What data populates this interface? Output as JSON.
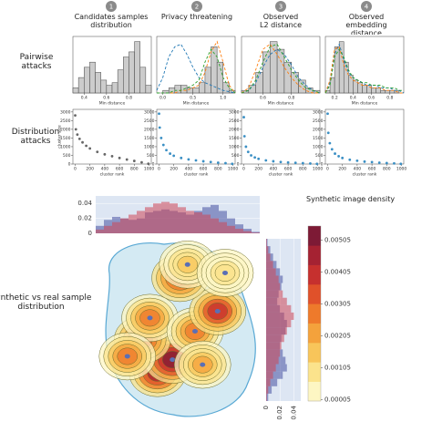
{
  "headers": [
    {
      "number": "1",
      "title": "Candidates samples distribution"
    },
    {
      "number": "2",
      "title": "Privacy threatening"
    },
    {
      "number": "3",
      "title": "Observed L2 distance"
    },
    {
      "number": "4",
      "title": "Observed embedding distance"
    }
  ],
  "row_labels": [
    "Pairwise attacks",
    "Distribution attacks",
    "Synthetic vs real sample distribution"
  ],
  "chart_data": [
    {
      "type": "histogram",
      "xlabel": "Min distance",
      "color": "#cccccc",
      "bins": [
        0.3,
        0.35,
        0.4,
        0.45,
        0.5,
        0.55,
        0.6,
        0.65,
        0.7,
        0.75,
        0.8,
        0.85,
        0.9,
        0.95,
        1.0
      ],
      "counts": [
        2,
        6,
        10,
        12,
        8,
        5,
        3,
        4,
        9,
        14,
        16,
        20,
        10,
        3
      ],
      "xlim": [
        0.3,
        1.0
      ],
      "ylim": [
        0,
        22
      ],
      "xticks": [
        0.4,
        0.6,
        0.8
      ],
      "series": []
    },
    {
      "type": "histogram",
      "xlabel": "Min distance",
      "color": "#cccccc",
      "bins": [
        -0.1,
        0,
        0.1,
        0.2,
        0.3,
        0.4,
        0.5,
        0.6,
        0.7,
        0.8,
        0.9,
        1.0,
        1.1,
        1.2
      ],
      "counts": [
        0,
        1,
        2,
        3,
        3,
        2,
        2,
        4,
        10,
        18,
        12,
        4,
        1
      ],
      "xlim": [
        -0.1,
        1.2
      ],
      "ylim": [
        0,
        22
      ],
      "xticks": [
        {
          "value": 0,
          "label": "0.0"
        },
        {
          "value": 0.5,
          "label": "0.5"
        },
        {
          "value": 1,
          "label": "1.0"
        }
      ],
      "x": [
        -0.1,
        0,
        0.1,
        0.2,
        0.3,
        0.4,
        0.5,
        0.6,
        0.7,
        0.8,
        0.9,
        1.0,
        1.1,
        1.2
      ],
      "series": [
        {
          "color": "#1f77b4",
          "values": [
            1,
            6,
            14,
            18,
            19,
            15,
            10,
            6,
            4,
            3,
            2,
            1,
            0.5,
            0
          ]
        },
        {
          "color": "#ff7f0e",
          "values": [
            0,
            0,
            0,
            0,
            1,
            1,
            2,
            3,
            8,
            16,
            20,
            12,
            3,
            0
          ]
        },
        {
          "color": "#2ca02c",
          "values": [
            0,
            0,
            0,
            1,
            1,
            2,
            3,
            5,
            12,
            17,
            14,
            6,
            2,
            0
          ]
        }
      ]
    },
    {
      "type": "histogram",
      "xlabel": "Min distance",
      "color": "#cccccc",
      "bins": [
        0.45,
        0.5,
        0.55,
        0.6,
        0.65,
        0.7,
        0.75,
        0.8,
        0.85,
        0.9,
        0.95,
        1.0
      ],
      "counts": [
        1,
        3,
        8,
        16,
        20,
        17,
        12,
        8,
        5,
        2,
        1
      ],
      "xlim": [
        0.45,
        1.0
      ],
      "ylim": [
        0,
        22
      ],
      "xticks": [
        0.6,
        0.8
      ],
      "x": [
        0.45,
        0.5,
        0.55,
        0.6,
        0.65,
        0.7,
        0.75,
        0.8,
        0.85,
        0.9,
        0.95,
        1.0
      ],
      "series": [
        {
          "color": "#1f77b4",
          "values": [
            0,
            1,
            4,
            10,
            15,
            17,
            15,
            11,
            6,
            3,
            1,
            0
          ]
        },
        {
          "color": "#ff7f0e",
          "values": [
            0,
            2,
            9,
            17,
            19,
            15,
            10,
            6,
            3,
            1,
            0,
            0
          ]
        },
        {
          "color": "#2ca02c",
          "values": [
            0,
            1,
            5,
            12,
            18,
            19,
            14,
            9,
            5,
            2,
            1,
            0
          ]
        }
      ]
    },
    {
      "type": "histogram",
      "xlabel": "Min distance",
      "color": "#cccccc",
      "bins": [
        0.1,
        0.15,
        0.2,
        0.25,
        0.3,
        0.35,
        0.4,
        0.45,
        0.5,
        0.55,
        0.6,
        0.65,
        0.7,
        0.75,
        0.8,
        0.85,
        0.9,
        0.95
      ],
      "counts": [
        1,
        6,
        18,
        20,
        12,
        7,
        5,
        4,
        3,
        3,
        2,
        2,
        1,
        1,
        1,
        1,
        0
      ],
      "xlim": [
        0.1,
        0.95
      ],
      "ylim": [
        0,
        22
      ],
      "xticks": [
        0.2,
        0.4,
        0.6,
        0.8
      ],
      "x": [
        0.1,
        0.15,
        0.2,
        0.25,
        0.3,
        0.35,
        0.4,
        0.45,
        0.5,
        0.55,
        0.6,
        0.65,
        0.7,
        0.75,
        0.8,
        0.85,
        0.9,
        0.95
      ],
      "series": [
        {
          "color": "#1f77b4",
          "values": [
            0,
            4,
            15,
            19,
            13,
            8,
            6,
            5,
            4,
            3,
            3,
            3,
            2,
            2,
            2,
            1,
            1,
            0
          ]
        },
        {
          "color": "#ff7f0e",
          "values": [
            0,
            5,
            17,
            18,
            11,
            7,
            5,
            4,
            3,
            3,
            2,
            2,
            2,
            1,
            1,
            1,
            0,
            0
          ]
        },
        {
          "color": "#2ca02c",
          "values": [
            0,
            3,
            14,
            17,
            14,
            9,
            6,
            5,
            4,
            4,
            3,
            3,
            3,
            2,
            2,
            2,
            1,
            1
          ]
        }
      ]
    },
    {
      "type": "scatter",
      "xlabel": "cluster rank",
      "ylabel": "cluster size",
      "xlim": [
        -30,
        1030
      ],
      "ylim": [
        0,
        3150
      ],
      "xticks": [
        0,
        200,
        400,
        600,
        800,
        1000
      ],
      "yticks": [
        0,
        500,
        1000,
        1500,
        2000,
        2500,
        3000
      ],
      "x": [
        1,
        10,
        30,
        60,
        100,
        150,
        200,
        300,
        400,
        500,
        600,
        700,
        800,
        900,
        990
      ],
      "series": [
        {
          "color": "#666666",
          "values": [
            2800,
            2000,
            1700,
            1450,
            1250,
            1050,
            900,
            700,
            560,
            450,
            350,
            260,
            180,
            100,
            20
          ]
        }
      ]
    },
    {
      "type": "scatter",
      "xlabel": "cluster rank",
      "xlim": [
        -30,
        1030
      ],
      "ylim": [
        0,
        3150
      ],
      "xticks": [
        0,
        200,
        400,
        600,
        800,
        1000
      ],
      "yticks": [
        0,
        500,
        1000,
        1500,
        2000,
        2500,
        3000
      ],
      "x": [
        1,
        10,
        30,
        60,
        100,
        150,
        200,
        300,
        400,
        500,
        600,
        700,
        800,
        900,
        990
      ],
      "series": [
        {
          "color": "#3a8fc4",
          "values": [
            2900,
            2100,
            1500,
            1100,
            800,
            600,
            480,
            350,
            270,
            210,
            160,
            120,
            80,
            50,
            15
          ]
        }
      ]
    },
    {
      "type": "scatter",
      "xlabel": "cluster rank",
      "xlim": [
        -30,
        1030
      ],
      "ylim": [
        0,
        3150
      ],
      "xticks": [
        0,
        200,
        400,
        600,
        800,
        1000
      ],
      "yticks": [
        0,
        500,
        1000,
        1500,
        2000,
        2500,
        3000
      ],
      "x": [
        1,
        10,
        30,
        60,
        100,
        150,
        200,
        300,
        400,
        500,
        600,
        700,
        800,
        900,
        990
      ],
      "series": [
        {
          "color": "#3a8fc4",
          "values": [
            2700,
            1600,
            1000,
            700,
            500,
            380,
            300,
            210,
            160,
            120,
            90,
            70,
            50,
            30,
            10
          ]
        }
      ]
    },
    {
      "type": "scatter",
      "xlabel": "cluster rank",
      "xlim": [
        -30,
        1030
      ],
      "ylim": [
        0,
        3150
      ],
      "xticks": [
        0,
        200,
        400,
        600,
        800,
        1000
      ],
      "yticks": [
        0,
        500,
        1000,
        1500,
        2000,
        2500,
        3000
      ],
      "x": [
        1,
        10,
        30,
        60,
        100,
        150,
        200,
        300,
        400,
        500,
        600,
        700,
        800,
        900,
        990
      ],
      "series": [
        {
          "color": "#3a8fc4",
          "values": [
            2900,
            1800,
            1200,
            850,
            600,
            450,
            350,
            250,
            190,
            140,
            110,
            80,
            60,
            40,
            10
          ]
        }
      ]
    },
    {
      "type": "density",
      "colorbar_title": "Synthetic image density",
      "xlim": [
        0,
        1
      ],
      "ylim": [
        0,
        1
      ],
      "x": [
        0.35,
        0.45,
        0.25,
        0.3,
        0.6,
        0.75,
        0.5,
        0.15,
        0.65,
        0.55,
        0.8
      ],
      "y": [
        0.25,
        0.33,
        0.45,
        0.58,
        0.5,
        0.62,
        0.82,
        0.35,
        0.3,
        0.9,
        0.85
      ],
      "values": [
        0.0045,
        0.0052,
        0.0035,
        0.003,
        0.0028,
        0.004,
        0.0032,
        0.0025,
        0.002,
        0.0015,
        0.001
      ],
      "zlim": [
        0,
        0.0055
      ],
      "zticks": [
        5e-05,
        0.00105,
        0.00205,
        0.00305,
        0.00405,
        0.00505
      ],
      "colorscale": [
        "#fdf6c3",
        "#fbe38c",
        "#f8c55a",
        "#f4a23c",
        "#ee7a2b",
        "#e0512a",
        "#c6302e",
        "#a52232",
        "#7d1a35"
      ],
      "top_marginal": {
        "ylim": [
          0,
          0.05
        ],
        "yticks": [
          0,
          0.02,
          0.04
        ],
        "series": [
          {
            "color": "rgba(70,80,160,0.55)",
            "values": [
              0.01,
              0.018,
              0.022,
              0.02,
              0.018,
              0.02,
              0.028,
              0.03,
              0.032,
              0.03,
              0.028,
              0.025,
              0.03,
              0.035,
              0.038,
              0.03,
              0.02,
              0.012,
              0.006,
              0.002
            ]
          },
          {
            "color": "rgba(205,70,85,0.55)",
            "values": [
              0.005,
              0.01,
              0.015,
              0.02,
              0.025,
              0.03,
              0.035,
              0.04,
              0.042,
              0.04,
              0.035,
              0.03,
              0.028,
              0.025,
              0.02,
              0.015,
              0.01,
              0.006,
              0.003,
              0.001
            ]
          }
        ]
      },
      "right_marginal": {
        "xlim": [
          0,
          0.05
        ],
        "xticks": [
          0,
          0.02,
          0.04
        ],
        "series": [
          {
            "color": "rgba(70,80,160,0.55)",
            "values": [
              0.002,
              0.006,
              0.01,
              0.015,
              0.02,
              0.024,
              0.022,
              0.018,
              0.016,
              0.02,
              0.026,
              0.03,
              0.028,
              0.022,
              0.02,
              0.024,
              0.028,
              0.03,
              0.024,
              0.016,
              0.008,
              0.003
            ]
          },
          {
            "color": "rgba(205,70,85,0.55)",
            "values": [
              0.001,
              0.003,
              0.006,
              0.01,
              0.014,
              0.018,
              0.02,
              0.024,
              0.03,
              0.036,
              0.04,
              0.036,
              0.03,
              0.026,
              0.022,
              0.02,
              0.018,
              0.014,
              0.01,
              0.006,
              0.003,
              0.001
            ]
          }
        ]
      }
    }
  ]
}
